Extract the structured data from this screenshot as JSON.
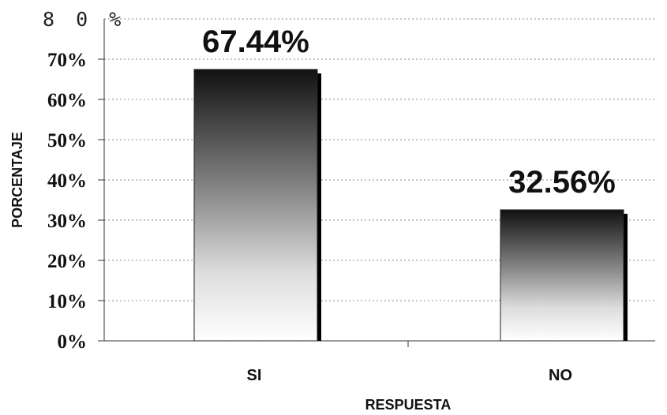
{
  "chart_data": {
    "type": "bar",
    "categories": [
      "SI",
      "NO"
    ],
    "values": [
      67.44,
      32.56
    ],
    "value_labels": [
      "67.44%",
      "32.56%"
    ],
    "xlabel": "RESPUESTA",
    "ylabel": "PORCENTAJE",
    "ylim": [
      0,
      80
    ],
    "yticks": [
      0,
      10,
      20,
      30,
      40,
      50,
      60,
      70,
      80
    ],
    "ytick_labels": [
      "0%",
      "10%",
      "20%",
      "30%",
      "40%",
      "50%",
      "60%",
      "70%",
      "8 0 %"
    ],
    "grid": true,
    "legend": "none",
    "colors": {
      "bar_top": "#111111",
      "bar_bottom": "#ffffff",
      "shadow": "#000000"
    }
  }
}
